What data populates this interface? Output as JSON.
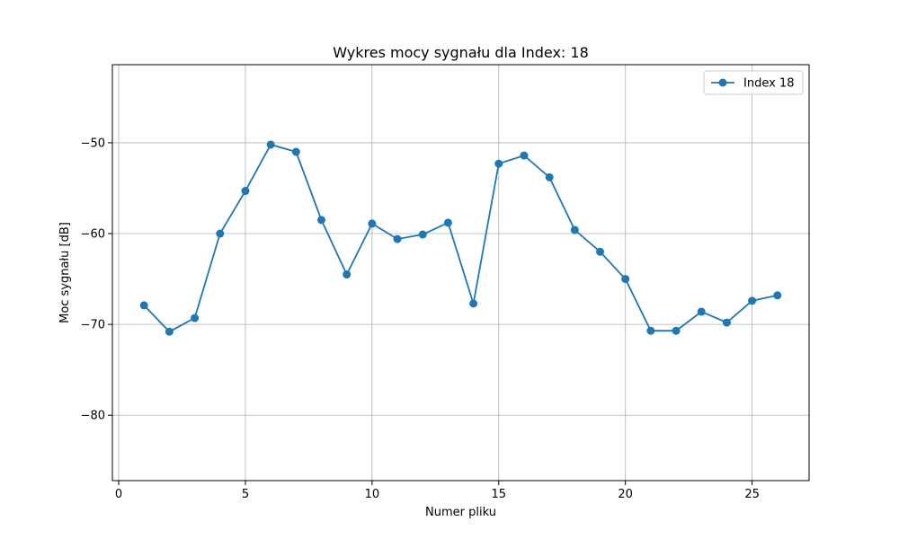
{
  "chart_data": {
    "type": "line",
    "title": "Wykres mocy sygnału dla Index: 18",
    "xlabel": "Numer pliku",
    "ylabel": "Moc sygnału [dB]",
    "xlim": [
      -0.25,
      27.25
    ],
    "ylim": [
      -87.2,
      -41.4
    ],
    "xticks": [
      0,
      5,
      10,
      15,
      20,
      25
    ],
    "yticks": [
      -80,
      -70,
      -60,
      -50
    ],
    "xtick_labels": [
      "0",
      "5",
      "10",
      "15",
      "20",
      "25"
    ],
    "ytick_labels": [
      "−80",
      "−70",
      "−60",
      "−50"
    ],
    "grid": true,
    "legend_position": "top-right",
    "series": [
      {
        "name": "Index 18",
        "color": "#1f77b4",
        "marker": "circle",
        "x": [
          1,
          2,
          3,
          4,
          5,
          6,
          7,
          8,
          9,
          10,
          11,
          12,
          13,
          14,
          15,
          16,
          17,
          18,
          19,
          20,
          21,
          22,
          23,
          24,
          25,
          26
        ],
        "y": [
          -67.9,
          -70.8,
          -69.3,
          -60.0,
          -55.3,
          -50.2,
          -51.0,
          -58.5,
          -64.5,
          -58.9,
          -60.6,
          -60.1,
          -58.8,
          -67.7,
          -52.3,
          -51.4,
          -53.8,
          -59.6,
          -62.0,
          -65.0,
          -70.7,
          -70.7,
          -68.6,
          -69.8,
          -67.4,
          -66.8
        ]
      }
    ]
  }
}
